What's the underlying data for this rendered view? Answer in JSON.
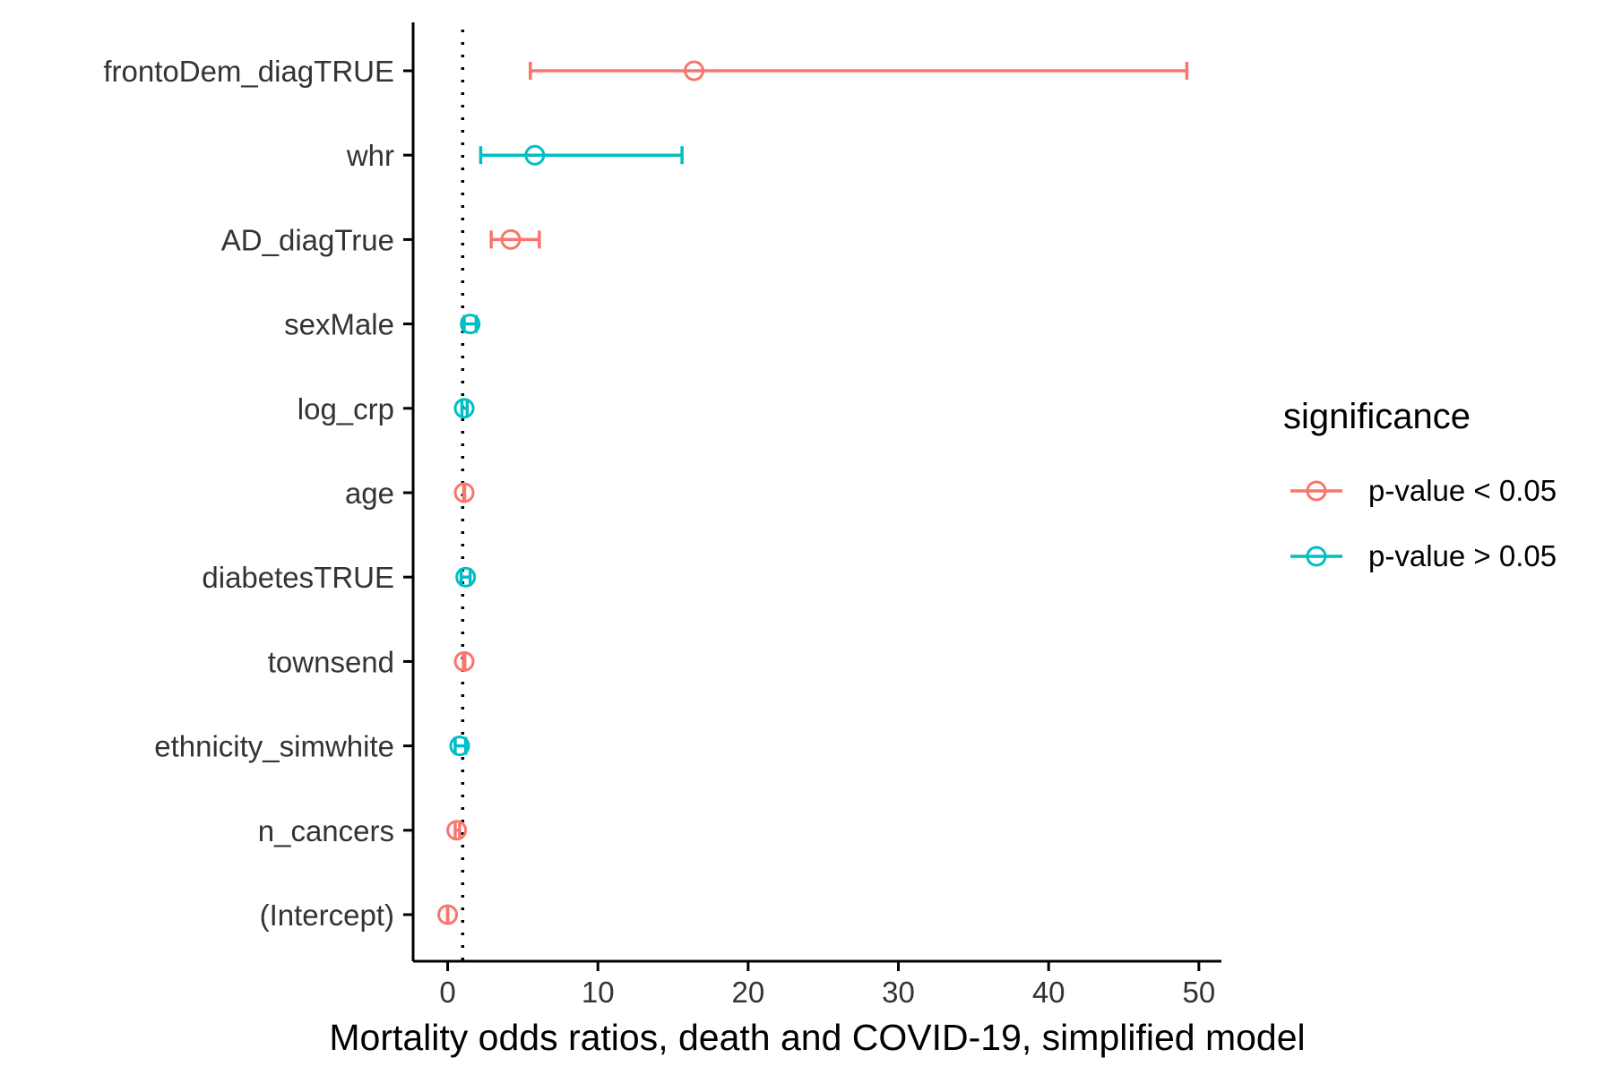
{
  "chart_data": {
    "type": "forest",
    "title": "",
    "xlabel": "Mortality odds ratios, death and COVID-19, simplified model",
    "ylabel": "",
    "xlim": [
      -2.3,
      51.5
    ],
    "xticks": [
      0,
      10,
      20,
      30,
      40,
      50
    ],
    "reference_line": 1,
    "grid": false,
    "legend": {
      "title": "significance",
      "position": "right",
      "entries": [
        {
          "label": "p-value < 0.05",
          "color": "#F8766D"
        },
        {
          "label": "p-value > 0.05",
          "color": "#00BFC4"
        }
      ]
    },
    "categories": [
      "frontoDem_diagTRUE",
      "whr",
      "AD_diagTrue",
      "sexMale",
      "log_crp",
      "age",
      "diabetesTRUE",
      "townsend",
      "ethnicity_simwhite",
      "n_cancers",
      "(Intercept)"
    ],
    "series": [
      {
        "name": "p-value < 0.05",
        "color": "#F8766D",
        "points": [
          {
            "category": "frontoDem_diagTRUE",
            "estimate": 16.4,
            "lower": 5.5,
            "upper": 49.2
          },
          {
            "category": "AD_diagTrue",
            "estimate": 4.2,
            "lower": 2.9,
            "upper": 6.1
          },
          {
            "category": "age",
            "estimate": 1.1,
            "lower": 1.07,
            "upper": 1.13
          },
          {
            "category": "townsend",
            "estimate": 1.1,
            "lower": 1.05,
            "upper": 1.14
          },
          {
            "category": "n_cancers",
            "estimate": 0.6,
            "lower": 0.5,
            "upper": 0.8
          },
          {
            "category": "(Intercept)",
            "estimate": 0.0,
            "lower": 0.0,
            "upper": 0.0
          }
        ]
      },
      {
        "name": "p-value > 0.05",
        "color": "#00BFC4",
        "points": [
          {
            "category": "whr",
            "estimate": 5.8,
            "lower": 2.2,
            "upper": 15.6
          },
          {
            "category": "sexMale",
            "estimate": 1.5,
            "lower": 1.1,
            "upper": 1.9
          },
          {
            "category": "log_crp",
            "estimate": 1.1,
            "lower": 0.95,
            "upper": 1.3
          },
          {
            "category": "diabetesTRUE",
            "estimate": 1.2,
            "lower": 0.9,
            "upper": 1.5
          },
          {
            "category": "ethnicity_simwhite",
            "estimate": 0.8,
            "lower": 0.5,
            "upper": 1.2
          }
        ]
      }
    ]
  }
}
